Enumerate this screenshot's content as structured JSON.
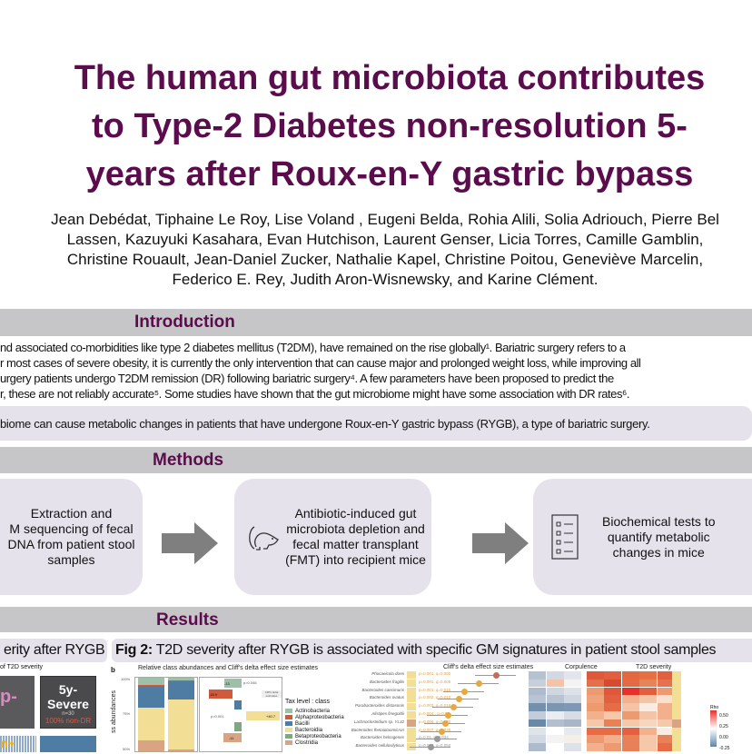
{
  "title": {
    "line1": "The human gut microbiota contributes",
    "line2": "to Type-2 Diabetes non-resolution 5-",
    "line3": "years after Roux-en-Y gastric bypass"
  },
  "authors": {
    "line1": "Jean Debédat, Tiphaine Le Roy, Lise Voland , Eugeni Belda, Rohia Alili, Solia Adriouch, Pierre Bel",
    "line2": "Lassen, Kazuyuki Kasahara, Evan Hutchison, Laurent Genser, Licia Torres, Camille Gamblin,",
    "line3": "Christine Rouault, Jean-Daniel Zucker, Nathalie Kapel, Christine Poitou, Geneviève Marcelin,",
    "line4": "Federico E. Rey, Judith Aron-Wisnewsky, and Karine Clément."
  },
  "introduction": {
    "heading": "Introduction",
    "lines": [
      "nd associated co-morbidities like type 2 diabetes mellitus (T2DM), have remained on the rise globally¹. Bariatric surgery refers to a",
      "r most cases of severe obesity, it is currently the only intervention that can cause major and prolonged weight loss, while improving all",
      "urgery patients undergo T2DM remission (DR) following bariatric surgery⁴. A few parameters have been proposed to predict the",
      "r, these are not reliably accurate⁵. Some studies have shown that the gut microbiome might have some association with DR rates⁶."
    ],
    "hypothesis": "biome can cause metabolic changes in patients that have undergone Roux-en-Y gastric bypass (RYGB), a type of bariatric surgery."
  },
  "methods": {
    "heading": "Methods",
    "steps": [
      {
        "text": "Extraction and\nM sequencing of fecal\nDNA from patient stool\nsamples",
        "icon": "none"
      },
      {
        "text": "Antibiotic-induced gut\nmicrobiota depletion and\nfecal matter transplant\n(FMT) into recipient mice",
        "icon": "mouse-icon"
      },
      {
        "text": "Biochemical tests to\nquantify metabolic\nchanges in mice",
        "icon": "checklist-icon"
      }
    ]
  },
  "results": {
    "heading": "Results",
    "fig1": {
      "caption": "erity after RYGB",
      "subtitle": "of T2D severity",
      "box_left": "p-",
      "box_right_title": "5y-Severe",
      "box_right_n": "n=30",
      "box_right_pct": "100% non-DR",
      "box_bottom": "n+"
    },
    "fig2": {
      "label": "Fig 2:",
      "caption": " T2D severity after RYGB is associated with specific GM signatures in patient stool samples",
      "panel": "b",
      "panel_title": "Relative class abundances and Cliff's delta effect size estimates",
      "ylabel": "ss abundances",
      "yticks": [
        "100%",
        "75%",
        "50%"
      ],
      "bar_values": [
        "-13",
        "-18.9",
        "+40.7",
        "-11"
      ],
      "pval": "p=0.001",
      "pval2": "p=0.046",
      "cliff_box": "Cliff's delta estimates",
      "legend_title": "Tax level : class",
      "legend": [
        {
          "name": "Actinobacteria",
          "color": "#9fbfa8"
        },
        {
          "name": "Alphaproteobacteria",
          "color": "#d05a3c"
        },
        {
          "name": "Bacilli",
          "color": "#4f7ca3"
        },
        {
          "name": "Bacteroidia",
          "color": "#f2de94"
        },
        {
          "name": "Betaproteobacteria",
          "color": "#7fa882"
        },
        {
          "name": "Clostridia",
          "color": "#d8a484"
        }
      ],
      "right_title": "Cliff's delta effect size estimates",
      "species": [
        "Phocaeicola dorei",
        "Bacteroides fragilis",
        "Bacteroides caecimuris",
        "Bacteroides ovatus",
        "Parabacteroides distasonis",
        "Alistipes finegoldii",
        "Lachnoclostridium sp. YL32",
        "Bacteroides thetaiotaomicron",
        "Bacteroides helcogenes",
        "Bacteroides cellulosilyticus"
      ],
      "pvals": [
        "p=0.001, q=0.002",
        "p=0.001, q=0.006",
        "p=0.001, q=0.010",
        "p=0.002, q=0.013",
        "p=0.003, q=0.016",
        "p=0.004 , q=0.02",
        "p=0.006, q=0.030",
        "p=0.007, q=0.036",
        "p=0.01, q=0.034",
        "p=0.017, q=0.050"
      ],
      "dot_colors": [
        "#c0705a",
        "#e6a840",
        "#e6a840",
        "#e6a840",
        "#e6a840",
        "#e6a840",
        "#e6a840",
        "#e6a840",
        "#999999",
        "#999999"
      ],
      "heat_head1": "Corpulence",
      "heat_head2": "T2D severity",
      "rho_label": "Rho",
      "rho_ticks": [
        "0.50",
        "0.25",
        "0.00",
        "-0.25"
      ]
    }
  }
}
